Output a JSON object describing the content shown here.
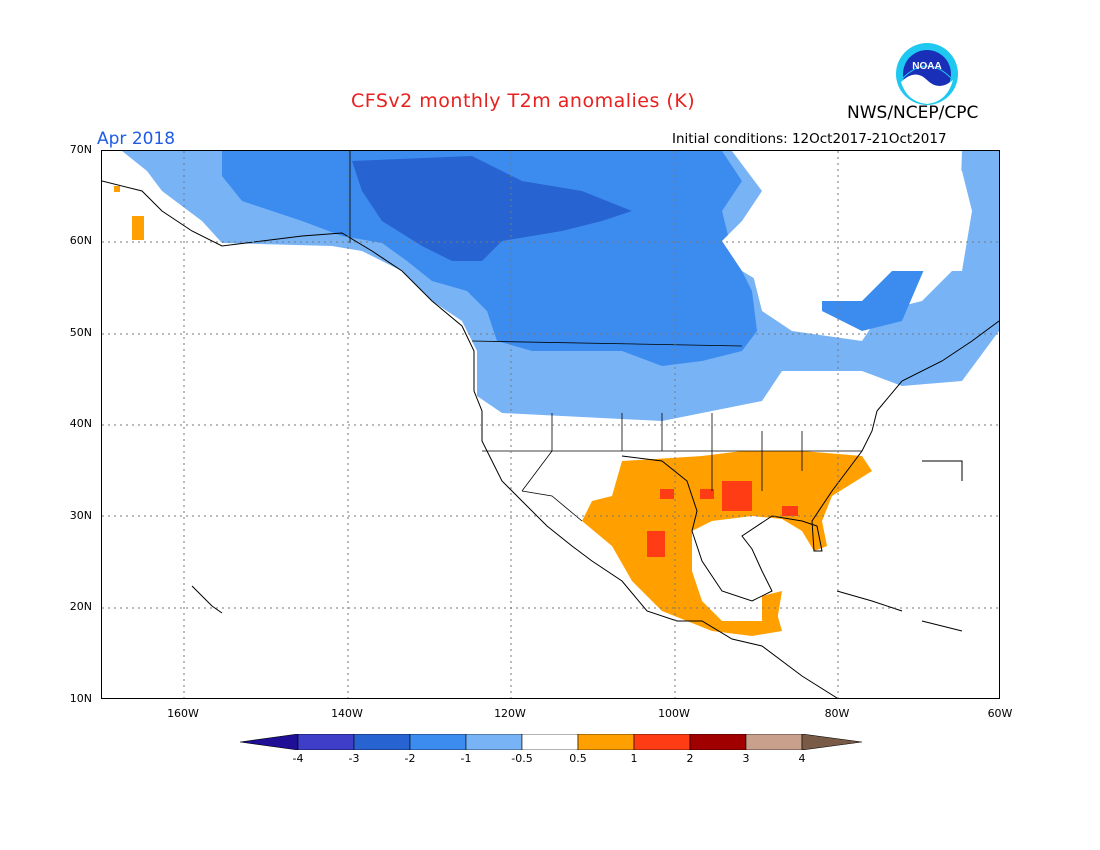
{
  "title": "CFSv2 monthly T2m anomalies (K)",
  "target_month": "Apr 2018",
  "initial_conditions": "Initial conditions: 12Oct2017-21Oct2017",
  "agency": "NWS/NCEP/CPC",
  "logo": {
    "icon": "noaa-logo",
    "text": "NOAA"
  },
  "colors": {
    "title": "#e8201e",
    "month": "#1f5be6",
    "cold_4": "#1e0f96",
    "cold_3": "#3e3ec8",
    "cold_2": "#2863d2",
    "cold_1": "#3c8cf0",
    "cold_05": "#78b4f5",
    "neutral": "#ffffff",
    "warm_05": "#ffa000",
    "warm_1": "#ff3c14",
    "warm_2": "#d21e0a",
    "warm_3": "#a00000",
    "warm_4": "#c8a08c",
    "warm_max": "#785a46"
  },
  "lat_labels": [
    "70N",
    "60N",
    "50N",
    "40N",
    "30N",
    "20N",
    "10N"
  ],
  "lon_labels": [
    "160W",
    "140W",
    "120W",
    "100W",
    "80W",
    "60W"
  ],
  "colorbar": {
    "labels": [
      "-4",
      "-3",
      "-2",
      "-1",
      "-0.5",
      "0.5",
      "1",
      "2",
      "3",
      "4"
    ],
    "colors": [
      "#1e0f96",
      "#3e3ec8",
      "#2863d2",
      "#3c8cf0",
      "#78b4f5",
      "#ffffff",
      "#ffa000",
      "#ff3c14",
      "#d21e0a",
      "#a00000",
      "#c8a08c",
      "#785a46"
    ]
  }
}
